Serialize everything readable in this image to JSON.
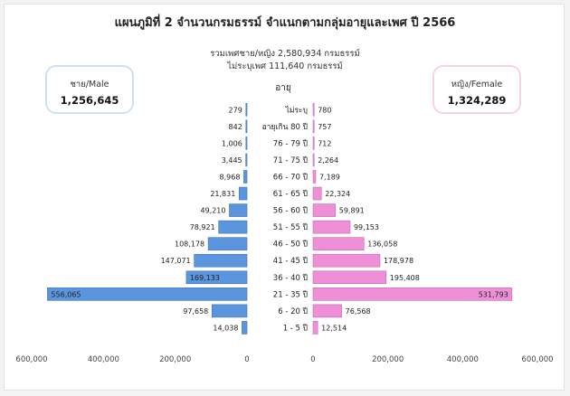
{
  "title": "แผนภูมิที่ 2 จำนวนกรมธรรม์ จำแนกตามกลุ่มอายุและเพศ ปี 2566",
  "subtitle_line1": "รวมเพศชาย/หญิง 2,580,934 กรมธรรม์",
  "subtitle_line2": "ไม่ระบุเพศ  111,640 กรมธรรม์",
  "male_box": {
    "label": "ชาย/Male",
    "value": "1,256,645"
  },
  "female_box": {
    "label": "หญิง/Female",
    "value": "1,324,289"
  },
  "colors": {
    "male": "#5b95dd",
    "male_border": "#3f74bd",
    "female": "#ee8fd8",
    "female_border": "#c46bb1"
  },
  "chart_data": {
    "type": "bar",
    "orientation": "horizontal-butterfly",
    "category_header": "อายุ",
    "categories": [
      "ไม่ระบุ",
      "อายุเกิน 80 ปี",
      "76 - 79 ปี",
      "71 - 75 ปี",
      "66 - 70 ปี",
      "61 - 65 ปี",
      "56 - 60 ปี",
      "51 - 55 ปี",
      "46 - 50 ปี",
      "41 - 45 ปี",
      "36 - 40 ปี",
      "21 - 35 ปี",
      "6 - 20 ปี",
      "1 - 5 ปี"
    ],
    "series": [
      {
        "name": "ชาย/Male",
        "values": [
          279,
          842,
          1006,
          3445,
          8968,
          21831,
          49210,
          78921,
          108178,
          147071,
          169133,
          556065,
          97658,
          14038
        ],
        "labels": [
          "279",
          "842",
          "1,006",
          "3,445",
          "8,968",
          "21,831",
          "49,210",
          "78,921",
          "108,178",
          "147,071",
          "169,133",
          "556,065",
          "97,658",
          "14,038"
        ]
      },
      {
        "name": "หญิง/Female",
        "values": [
          780,
          757,
          712,
          2264,
          7189,
          22324,
          59891,
          99153,
          136058,
          178978,
          195408,
          531793,
          76568,
          12514
        ],
        "labels": [
          "780",
          "757",
          "712",
          "2,264",
          "7,189",
          "22,324",
          "59,891",
          "99,153",
          "136,058",
          "178,978",
          "195,408",
          "531,793",
          "76,568",
          "12,514"
        ]
      }
    ],
    "xlim_left": [
      0,
      600000
    ],
    "xlim_right": [
      0,
      600000
    ],
    "left_ticks": [
      "600,000",
      "400,000",
      "200,000",
      "0"
    ],
    "left_tick_values": [
      600000,
      400000,
      200000,
      0
    ],
    "right_ticks": [
      "0",
      "200,000",
      "400,000",
      "600,000"
    ],
    "right_tick_values": [
      0,
      200000,
      400000,
      600000
    ],
    "grid": false,
    "legend": "none"
  }
}
